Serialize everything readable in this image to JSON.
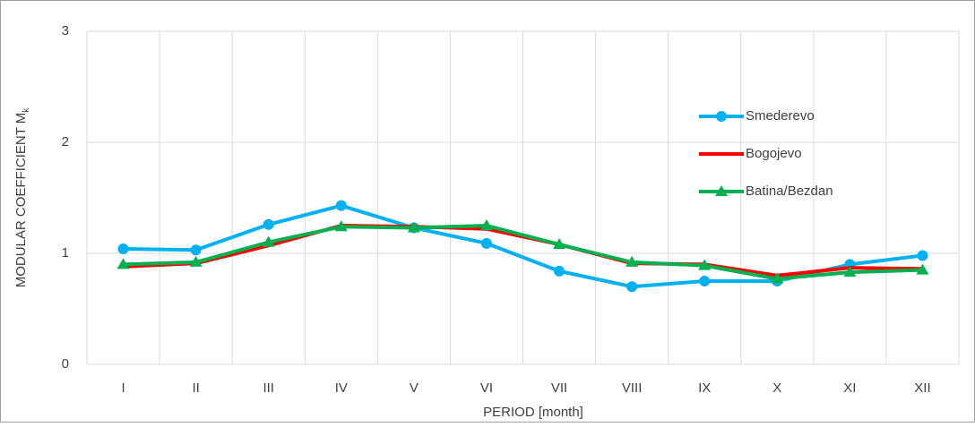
{
  "chart_data": {
    "type": "line",
    "xlabel": "PERIOD [month]",
    "ylabel": {
      "text": "MODULAR COEFFICIENT  M",
      "subscript": "k"
    },
    "categories": [
      "I",
      "II",
      "III",
      "IV",
      "V",
      "VI",
      "VII",
      "VIII",
      "IX",
      "X",
      "XI",
      "XII"
    ],
    "series": [
      {
        "name": "Smederevo",
        "color": "#00b0f0",
        "marker": "circle",
        "values": [
          1.04,
          1.03,
          1.26,
          1.43,
          1.23,
          1.09,
          0.84,
          0.7,
          0.75,
          0.75,
          0.9,
          0.98
        ]
      },
      {
        "name": "Bogojevo",
        "color": "#ff0000",
        "marker": "none",
        "values": [
          0.88,
          0.91,
          1.07,
          1.25,
          1.24,
          1.22,
          1.08,
          0.91,
          0.9,
          0.8,
          0.87,
          0.86
        ]
      },
      {
        "name": "Batina/Bezdan",
        "color": "#00b050",
        "marker": "triangle",
        "values": [
          0.9,
          0.92,
          1.1,
          1.24,
          1.23,
          1.25,
          1.08,
          0.92,
          0.89,
          0.77,
          0.83,
          0.85
        ]
      }
    ],
    "ylim": [
      0,
      3
    ],
    "yticks": [
      0,
      1,
      2,
      3
    ],
    "grid": true,
    "legend": "upper right"
  }
}
